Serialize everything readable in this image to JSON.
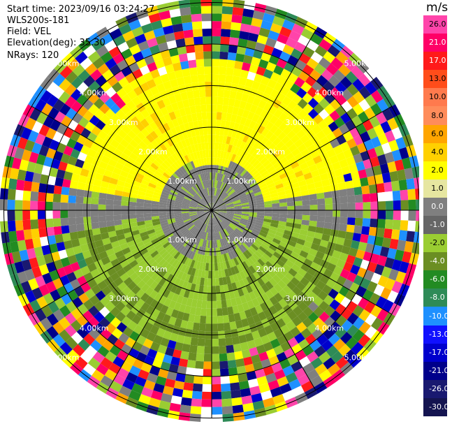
{
  "header": {
    "start_time": "Start time: 2023/09/16 03:24:27",
    "device": "WLS200s-181",
    "field": "Field: VEL",
    "elevation": "Elevation(deg): 35.30",
    "nrays": "NRays: 120"
  },
  "colorbar": {
    "unit": "m/s",
    "ticks": [
      "26.0",
      "21.0",
      "17.0",
      "13.0",
      "10.0",
      "8.0",
      "6.0",
      "4.0",
      "2.0",
      "1.0",
      "0.0",
      "-1.0",
      "-2.0",
      "-4.0",
      "-6.0",
      "-8.0",
      "-10.0",
      "-13.0",
      "-17.0",
      "-21.0",
      "-26.0",
      "-30.0"
    ],
    "colors": [
      "#ff44aa",
      "#ff0066",
      "#ff1a1a",
      "#ff4d1a",
      "#ff7a4d",
      "#ff8c5a",
      "#ffa500",
      "#ffd000",
      "#ffff00",
      "#e6e6a0",
      "#7f7f7f",
      "#666666",
      "#9acd32",
      "#6b8e23",
      "#228b22",
      "#2e8b57",
      "#1e90ff",
      "#1010ff",
      "#0000cd",
      "#00008b",
      "#191970",
      "#141450"
    ]
  },
  "chart_data": {
    "type": "heatmap",
    "projection": "polar PPI",
    "field": "VEL",
    "unit": "m/s",
    "n_rays": 120,
    "range_rings_km": [
      1.0,
      2.0,
      3.0,
      4.0,
      5.0
    ],
    "ring_labels": [
      "1.00km",
      "2.00km",
      "3.00km",
      "4.00km",
      "5.00km"
    ],
    "spoke_angles_deg": [
      0,
      30,
      60,
      90,
      120,
      150,
      180,
      210,
      240,
      270,
      300,
      330
    ],
    "approx_regions": [
      {
        "range_km": [
          0.0,
          1.3
        ],
        "value_ms": 0.0,
        "note": "grey near-zero core"
      },
      {
        "azimuth": "north",
        "range_km": [
          1.3,
          3.5
        ],
        "value_ms": 2.0,
        "note": "yellow band"
      },
      {
        "azimuth": "south",
        "range_km": [
          0.5,
          3.8
        ],
        "value_ms": -2.0,
        "note": "green band"
      },
      {
        "range_km": [
          3.5,
          5.0
        ],
        "value_ms": "noise",
        "note": "random colors beyond ~3.5 km"
      }
    ]
  }
}
